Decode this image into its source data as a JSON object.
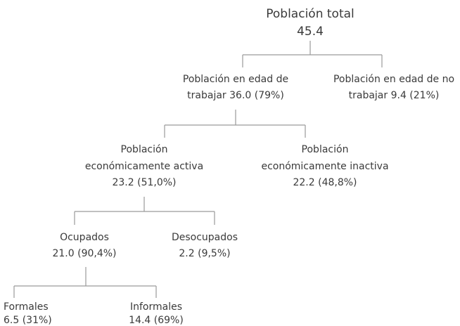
{
  "nodes": [
    {
      "lines": [
        "Población total",
        "45.4"
      ]
    },
    {
      "lines": [
        "Población en edad de",
        "trabajar 36.0 (79%)"
      ]
    },
    {
      "lines": [
        "Población en edad de no",
        "trabajar 9.4 (21%)"
      ]
    },
    {
      "lines": [
        "Población",
        "económicamente activa",
        "23.2 (51,0%)"
      ]
    },
    {
      "lines": [
        "Población",
        "económicamente inactiva",
        "22.2 (48,8%)"
      ]
    },
    {
      "lines": [
        "Ocupados",
        "21.0 (90,4%)"
      ]
    },
    {
      "lines": [
        "Desocupados",
        "2.2 (9,5%)"
      ]
    },
    {
      "lines": [
        "Formales",
        "6.5 (31%)"
      ]
    },
    {
      "lines": [
        "Informales",
        "14.4 (69%)"
      ]
    }
  ]
}
